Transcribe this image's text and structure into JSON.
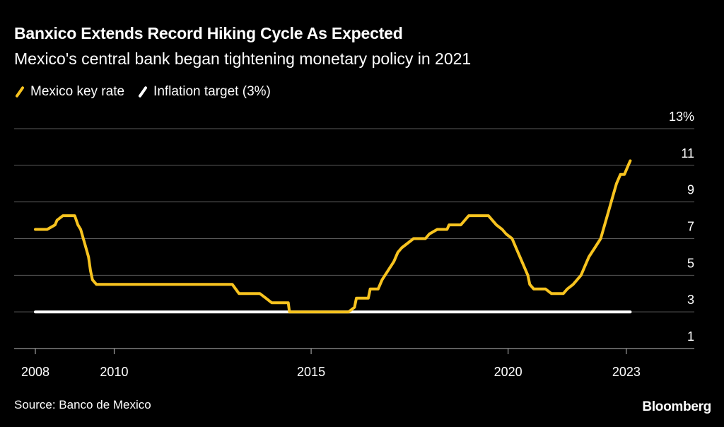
{
  "header": {
    "title": "Banxico Extends Record Hiking Cycle As Expected",
    "subtitle": "Mexico's central bank began tightening monetary policy in 2021"
  },
  "legend": {
    "series1": "Mexico key rate",
    "series2": "Inflation target (3%)"
  },
  "footer": {
    "source": "Source: Banco de Mexico",
    "brand": "Bloomberg"
  },
  "colors": {
    "rate": "#f7c31f",
    "target": "#ffffff",
    "grid": "#5a5a5a",
    "background": "#000000"
  },
  "chart_data": {
    "type": "line",
    "title": "Banxico Extends Record Hiking Cycle As Expected",
    "subtitle": "Mexico's central bank began tightening monetary policy in 2021",
    "xlabel": "",
    "ylabel": "",
    "xlim": [
      2008.0,
      2023.9
    ],
    "ylim": [
      1,
      13
    ],
    "y_unit_suffix": "%",
    "y_ticks": [
      1,
      3,
      5,
      7,
      9,
      11,
      13
    ],
    "x_ticks": [
      2008,
      2010,
      2015,
      2020,
      2023
    ],
    "grid": true,
    "legend_position": "top-left",
    "series": [
      {
        "name": "Mexico key rate",
        "color": "#f7c31f",
        "points": [
          [
            2008.0,
            7.5
          ],
          [
            2008.3,
            7.5
          ],
          [
            2008.5,
            7.75
          ],
          [
            2008.55,
            8.0
          ],
          [
            2008.7,
            8.25
          ],
          [
            2008.85,
            8.25
          ],
          [
            2009.0,
            8.25
          ],
          [
            2009.08,
            7.75
          ],
          [
            2009.15,
            7.5
          ],
          [
            2009.25,
            6.75
          ],
          [
            2009.35,
            6.0
          ],
          [
            2009.4,
            5.25
          ],
          [
            2009.45,
            4.75
          ],
          [
            2009.55,
            4.5
          ],
          [
            2010.0,
            4.5
          ],
          [
            2011.0,
            4.5
          ],
          [
            2012.0,
            4.5
          ],
          [
            2013.0,
            4.5
          ],
          [
            2013.17,
            4.0
          ],
          [
            2013.4,
            4.0
          ],
          [
            2013.7,
            4.0
          ],
          [
            2013.85,
            3.75
          ],
          [
            2014.0,
            3.5
          ],
          [
            2014.42,
            3.5
          ],
          [
            2014.45,
            3.0
          ],
          [
            2015.0,
            3.0
          ],
          [
            2015.5,
            3.0
          ],
          [
            2015.95,
            3.0
          ],
          [
            2016.1,
            3.25
          ],
          [
            2016.15,
            3.75
          ],
          [
            2016.3,
            3.75
          ],
          [
            2016.45,
            3.75
          ],
          [
            2016.5,
            4.25
          ],
          [
            2016.7,
            4.25
          ],
          [
            2016.8,
            4.75
          ],
          [
            2016.95,
            5.25
          ],
          [
            2017.1,
            5.75
          ],
          [
            2017.2,
            6.25
          ],
          [
            2017.3,
            6.5
          ],
          [
            2017.45,
            6.75
          ],
          [
            2017.6,
            7.0
          ],
          [
            2017.9,
            7.0
          ],
          [
            2018.0,
            7.25
          ],
          [
            2018.2,
            7.5
          ],
          [
            2018.45,
            7.5
          ],
          [
            2018.5,
            7.75
          ],
          [
            2018.8,
            7.75
          ],
          [
            2018.9,
            8.0
          ],
          [
            2019.0,
            8.25
          ],
          [
            2019.5,
            8.25
          ],
          [
            2019.6,
            8.0
          ],
          [
            2019.7,
            7.75
          ],
          [
            2019.85,
            7.5
          ],
          [
            2019.95,
            7.25
          ],
          [
            2020.1,
            7.0
          ],
          [
            2020.2,
            6.5
          ],
          [
            2020.3,
            6.0
          ],
          [
            2020.4,
            5.5
          ],
          [
            2020.5,
            5.0
          ],
          [
            2020.55,
            4.5
          ],
          [
            2020.65,
            4.25
          ],
          [
            2020.95,
            4.25
          ],
          [
            2021.1,
            4.0
          ],
          [
            2021.4,
            4.0
          ],
          [
            2021.5,
            4.25
          ],
          [
            2021.65,
            4.5
          ],
          [
            2021.75,
            4.75
          ],
          [
            2021.85,
            5.0
          ],
          [
            2021.95,
            5.5
          ],
          [
            2022.05,
            6.0
          ],
          [
            2022.2,
            6.5
          ],
          [
            2022.35,
            7.0
          ],
          [
            2022.45,
            7.75
          ],
          [
            2022.55,
            8.5
          ],
          [
            2022.65,
            9.25
          ],
          [
            2022.75,
            10.0
          ],
          [
            2022.85,
            10.5
          ],
          [
            2022.95,
            10.5
          ],
          [
            2023.05,
            11.0
          ],
          [
            2023.1,
            11.25
          ]
        ]
      },
      {
        "name": "Inflation target (3%)",
        "color": "#ffffff",
        "points": [
          [
            2008.0,
            3.0
          ],
          [
            2023.1,
            3.0
          ]
        ]
      }
    ]
  }
}
